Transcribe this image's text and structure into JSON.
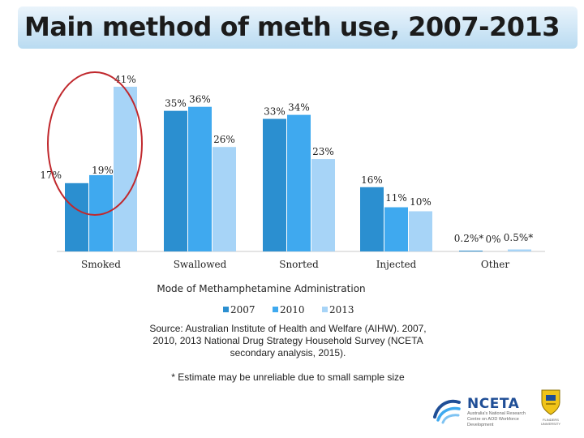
{
  "header": {
    "title": "Main method of meth use, 2007-2013"
  },
  "chart_data": {
    "type": "bar",
    "title": "Main method of meth use, 2007-2013",
    "xlabel": "Mode of Methamphetamine Administration",
    "ylabel": "",
    "ylim": [
      0,
      45
    ],
    "categories": [
      "Smoked",
      "Swallowed",
      "Snorted",
      "Injected",
      "Other"
    ],
    "series": [
      {
        "name": "2007",
        "values": [
          17,
          35,
          33,
          16,
          0.2
        ],
        "labels": [
          "17%",
          "35%",
          "33%",
          "16%",
          "0.2%*"
        ],
        "color": "#2b8fd0"
      },
      {
        "name": "2010",
        "values": [
          19,
          36,
          34,
          11,
          0
        ],
        "labels": [
          "19%",
          "36%",
          "34%",
          "11%",
          "0%"
        ],
        "color": "#3fa9ef"
      },
      {
        "name": "2013",
        "values": [
          41,
          26,
          23,
          10,
          0.5
        ],
        "labels": [
          "41%",
          "26%",
          "23%",
          "10%",
          "0.5%*"
        ],
        "color": "#a7d4f7"
      }
    ],
    "legend_position": "bottom",
    "grid": false,
    "highlight": {
      "category": "Smoked",
      "shape": "ellipse",
      "color": "#c0282d"
    }
  },
  "footer": {
    "source": "Source: Australian Institute of Health and Welfare (AIHW). 2007, 2010, 2013 National Drug Strategy Household Survey (NCETA secondary analysis, 2015).",
    "note": "* Estimate may be unreliable due to small sample size"
  },
  "logos": {
    "nceta_name": "NCETA",
    "nceta_tagline": "Australia's National Research Centre on AOD Workforce Development",
    "university_name": "FLINDERS UNIVERSITY",
    "icons": [
      "nceta-logo-icon",
      "university-crest-icon"
    ]
  }
}
